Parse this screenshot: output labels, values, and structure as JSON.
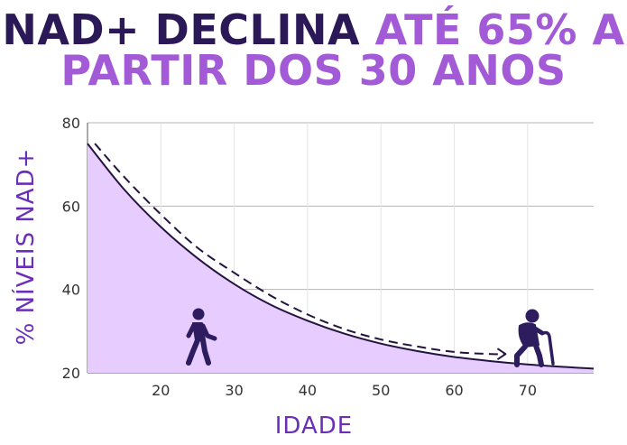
{
  "title": {
    "line1_dark": "NAD+ DECLINA",
    "line1_light": "ATÉ 65% A",
    "line2": "PARTIR DOS 30 ANOS"
  },
  "colors": {
    "title_dark": "#2b1957",
    "title_light": "#a25ad6",
    "fill": "#e6ccff",
    "line": "#241440",
    "icon": "#2e1d5e",
    "axis_label": "#6a2fb8"
  },
  "icons": [
    "walking-person-icon",
    "elderly-person-with-cane-icon"
  ],
  "chart_data": {
    "type": "area",
    "xlabel": "IDADE",
    "ylabel": "% NÍVEIS NAD+",
    "xlim": [
      10,
      79
    ],
    "ylim": [
      20,
      80
    ],
    "xticks": [
      20,
      30,
      40,
      50,
      60,
      70
    ],
    "yticks": [
      20,
      40,
      60,
      80
    ],
    "grid": true,
    "series": [
      {
        "style": "solid-area",
        "x": [
          10,
          15,
          20,
          25,
          30,
          35,
          40,
          45,
          50,
          55,
          60,
          65,
          70,
          75,
          79
        ],
        "y": [
          75,
          64,
          55,
          47.5,
          41.3,
          36.3,
          32.5,
          29.4,
          27,
          25.2,
          23.8,
          22.8,
          22,
          21.4,
          21
        ]
      },
      {
        "style": "dashed-arrow",
        "x": [
          11,
          15,
          20,
          25,
          30,
          35,
          40,
          45,
          50,
          55,
          60,
          65,
          67
        ],
        "y": [
          75,
          67,
          58,
          50,
          44,
          38.5,
          34,
          30.5,
          28,
          26.3,
          25,
          24.5,
          24.5
        ]
      }
    ]
  }
}
